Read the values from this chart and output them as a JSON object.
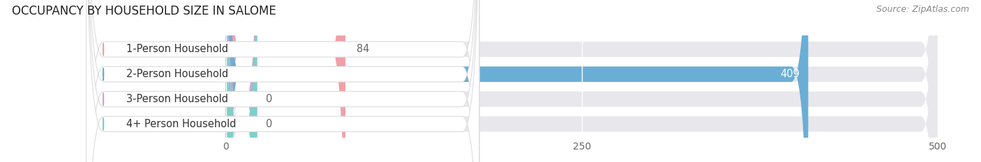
{
  "title": "OCCUPANCY BY HOUSEHOLD SIZE IN SALOME",
  "source": "Source: ZipAtlas.com",
  "categories": [
    "1-Person Household",
    "2-Person Household",
    "3-Person Household",
    "4+ Person Household"
  ],
  "values": [
    84,
    409,
    0,
    0
  ],
  "bar_colors": [
    "#f0a0a8",
    "#6aaed6",
    "#c9a8d4",
    "#7ecfc8"
  ],
  "xlim_data": 500,
  "xticks": [
    0,
    250,
    500
  ],
  "background_color": "#ffffff",
  "bar_bg_color": "#e8e8ec",
  "value_label_inside_color": "#ffffff",
  "value_label_outside_color": "#666666",
  "title_fontsize": 12,
  "label_fontsize": 10.5,
  "tick_fontsize": 10,
  "source_fontsize": 9
}
